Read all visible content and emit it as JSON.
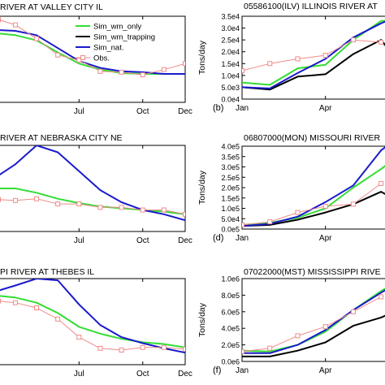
{
  "legend": {
    "items": [
      {
        "label": "Sim_wm_only",
        "color": "#33dd33",
        "marker": "none"
      },
      {
        "label": "Sim_wm_trapping",
        "color": "#000000",
        "marker": "none"
      },
      {
        "label": "Sim_nat.",
        "color": "#1a1acc",
        "marker": "none"
      },
      {
        "label": "Obs.",
        "color": "#f08a8a",
        "marker": "square"
      }
    ]
  },
  "colors": {
    "wm_only": "#33dd33",
    "wm_trapping": "#000000",
    "nat": "#1a1acc",
    "obs": "#f08a8a"
  },
  "chart_data": [
    {
      "type": "line",
      "panel": "left-top",
      "title": "RIVER AT VALLEY CITY IL",
      "ylabel": "",
      "panel_label": "",
      "xticks": [
        {
          "label": "Jul",
          "x": 7
        },
        {
          "label": "Oct",
          "x": 10
        },
        {
          "label": "Dec",
          "x": 12
        }
      ],
      "xlim": [
        3.2,
        12
      ],
      "ylim": [
        0,
        1
      ],
      "series": [
        {
          "name": "Sim_wm_only",
          "points": [
            [
              3.2,
              0.8
            ],
            [
              4,
              0.78
            ],
            [
              5,
              0.72
            ],
            [
              6,
              0.58
            ],
            [
              7,
              0.45
            ],
            [
              8,
              0.38
            ],
            [
              9,
              0.34
            ],
            [
              10,
              0.33
            ],
            [
              11,
              0.33
            ],
            [
              12,
              0.33
            ]
          ]
        },
        {
          "name": "Sim_nat.",
          "points": [
            [
              3.2,
              0.84
            ],
            [
              4,
              0.83
            ],
            [
              5,
              0.78
            ],
            [
              6,
              0.63
            ],
            [
              7,
              0.48
            ],
            [
              8,
              0.4
            ],
            [
              9,
              0.36
            ],
            [
              10,
              0.35
            ],
            [
              11,
              0.33
            ],
            [
              12,
              0.33
            ]
          ]
        },
        {
          "name": "Obs.",
          "markers": true,
          "points": [
            [
              3.2,
              0.96
            ],
            [
              4,
              0.9
            ],
            [
              5,
              0.74
            ],
            [
              6,
              0.55
            ],
            [
              7,
              0.49
            ],
            [
              8,
              0.36
            ],
            [
              9,
              0.35
            ],
            [
              10,
              0.32
            ],
            [
              11,
              0.38
            ],
            [
              12,
              0.45
            ]
          ]
        }
      ]
    },
    {
      "type": "line",
      "panel": "right-top",
      "title": "05586100(ILV) ILLINOIS RIVER AT",
      "ylabel": "Tons/day",
      "panel_label": "(b)",
      "xticks": [
        {
          "label": "Jan",
          "x": 1
        },
        {
          "label": "Apr",
          "x": 4
        }
      ],
      "yticks": [
        "0.0e4",
        "5.0e3",
        "1.0e4",
        "1.5e4",
        "2.0e4",
        "2.5e4",
        "3.0e4",
        "3.5e4"
      ],
      "xlim": [
        1,
        6.2
      ],
      "ylim": [
        0,
        35000
      ],
      "series": [
        {
          "name": "Sim_wm_only",
          "points": [
            [
              1,
              7000
            ],
            [
              2,
              6000
            ],
            [
              3,
              13000
            ],
            [
              4,
              14500
            ],
            [
              5,
              25000
            ],
            [
              6,
              33000
            ],
            [
              6.2,
              33000
            ]
          ]
        },
        {
          "name": "Sim_wm_trapping",
          "points": [
            [
              1,
              5000
            ],
            [
              2,
              4000
            ],
            [
              3,
              9500
            ],
            [
              4,
              10500
            ],
            [
              5,
              19000
            ],
            [
              6,
              25000
            ],
            [
              6.2,
              22000
            ]
          ]
        },
        {
          "name": "Sim_nat.",
          "points": [
            [
              1,
              5000
            ],
            [
              2,
              4500
            ],
            [
              3,
              11000
            ],
            [
              4,
              17000
            ],
            [
              5,
              26000
            ],
            [
              6,
              32000
            ],
            [
              6.2,
              33000
            ]
          ]
        },
        {
          "name": "Obs.",
          "markers": true,
          "points": [
            [
              1,
              12000
            ],
            [
              2,
              15000
            ],
            [
              3,
              17000
            ],
            [
              4,
              18500
            ],
            [
              5,
              25000
            ],
            [
              6,
              24000
            ]
          ]
        }
      ]
    },
    {
      "type": "line",
      "panel": "left-middle",
      "title": "RIVER AT NEBRASKA CITY NE",
      "ylabel": "",
      "panel_label": "",
      "xticks": [
        {
          "label": "Jul",
          "x": 7
        },
        {
          "label": "Oct",
          "x": 10
        },
        {
          "label": "Dec",
          "x": 12
        }
      ],
      "xlim": [
        3.2,
        12
      ],
      "ylim": [
        0,
        1
      ],
      "series": [
        {
          "name": "Sim_wm_only",
          "points": [
            [
              3.2,
              0.5
            ],
            [
              4,
              0.5
            ],
            [
              5,
              0.45
            ],
            [
              6,
              0.38
            ],
            [
              7,
              0.33
            ],
            [
              8,
              0.29
            ],
            [
              9,
              0.27
            ],
            [
              10,
              0.25
            ],
            [
              11,
              0.23
            ],
            [
              12,
              0.2
            ]
          ]
        },
        {
          "name": "Sim_nat.",
          "points": [
            [
              3.2,
              0.65
            ],
            [
              4,
              0.78
            ],
            [
              5,
              1.0
            ],
            [
              6,
              0.92
            ],
            [
              7,
              0.7
            ],
            [
              8,
              0.48
            ],
            [
              9,
              0.34
            ],
            [
              10,
              0.25
            ],
            [
              11,
              0.2
            ],
            [
              12,
              0.13
            ]
          ]
        },
        {
          "name": "Obs.",
          "markers": true,
          "points": [
            [
              3.2,
              0.37
            ],
            [
              4,
              0.36
            ],
            [
              5,
              0.38
            ],
            [
              6,
              0.32
            ],
            [
              7,
              0.32
            ],
            [
              8,
              0.28
            ],
            [
              9,
              0.28
            ],
            [
              10,
              0.25
            ],
            [
              11,
              0.25
            ],
            [
              12,
              0.2
            ]
          ]
        }
      ]
    },
    {
      "type": "line",
      "panel": "right-middle",
      "title": "06807000(MON) MISSOURI RIVER",
      "ylabel": "Tons/day",
      "panel_label": "(d)",
      "xticks": [
        {
          "label": "Jan",
          "x": 1
        },
        {
          "label": "Apr",
          "x": 4
        }
      ],
      "yticks": [
        "0.0e5",
        "5.0e4",
        "1.0e5",
        "1.5e5",
        "2.0e5",
        "2.5e5",
        "3.0e5",
        "3.5e5",
        "4.0e5"
      ],
      "xlim": [
        1,
        6.2
      ],
      "ylim": [
        0,
        400000
      ],
      "series": [
        {
          "name": "Sim_wm_only",
          "points": [
            [
              1,
              20000
            ],
            [
              2,
              30000
            ],
            [
              3,
              55000
            ],
            [
              4,
              100000
            ],
            [
              5,
              200000
            ],
            [
              6,
              290000
            ],
            [
              6.2,
              310000
            ]
          ]
        },
        {
          "name": "Sim_wm_trapping",
          "points": [
            [
              1,
              15000
            ],
            [
              2,
              20000
            ],
            [
              3,
              45000
            ],
            [
              4,
              80000
            ],
            [
              5,
              120000
            ],
            [
              6,
              180000
            ],
            [
              6.2,
              165000
            ]
          ]
        },
        {
          "name": "Sim_nat.",
          "points": [
            [
              1,
              15000
            ],
            [
              2,
              25000
            ],
            [
              3,
              60000
            ],
            [
              4,
              130000
            ],
            [
              5,
              210000
            ],
            [
              6,
              380000
            ],
            [
              6.2,
              400000
            ]
          ]
        },
        {
          "name": "Obs.",
          "markers": true,
          "points": [
            [
              1,
              20000
            ],
            [
              2,
              35000
            ],
            [
              3,
              80000
            ],
            [
              4,
              110000
            ],
            [
              5,
              120000
            ],
            [
              6,
              220000
            ]
          ]
        }
      ]
    },
    {
      "type": "line",
      "panel": "left-bottom",
      "title": "PI RIVER AT THEBES IL",
      "ylabel": "",
      "panel_label": "",
      "xticks": [
        {
          "label": "Jul",
          "x": 7
        },
        {
          "label": "Oct",
          "x": 10
        },
        {
          "label": "Dec",
          "x": 12
        }
      ],
      "xlim": [
        3.2,
        12
      ],
      "ylim": [
        0,
        1
      ],
      "series": [
        {
          "name": "Sim_wm_only",
          "points": [
            [
              3.2,
              0.8
            ],
            [
              4,
              0.78
            ],
            [
              5,
              0.72
            ],
            [
              6,
              0.6
            ],
            [
              7,
              0.44
            ],
            [
              8,
              0.36
            ],
            [
              9,
              0.3
            ],
            [
              10,
              0.26
            ],
            [
              11,
              0.24
            ],
            [
              12,
              0.2
            ]
          ]
        },
        {
          "name": "Sim_nat.",
          "points": [
            [
              3.2,
              0.86
            ],
            [
              4,
              0.92
            ],
            [
              5,
              1.0
            ],
            [
              6,
              0.98
            ],
            [
              7,
              0.7
            ],
            [
              8,
              0.46
            ],
            [
              9,
              0.32
            ],
            [
              10,
              0.25
            ],
            [
              11,
              0.19
            ],
            [
              12,
              0.14
            ]
          ]
        },
        {
          "name": "Obs.",
          "markers": true,
          "points": [
            [
              3.2,
              0.74
            ],
            [
              4,
              0.72
            ],
            [
              5,
              0.66
            ],
            [
              6,
              0.53
            ],
            [
              7,
              0.32
            ],
            [
              8,
              0.19
            ],
            [
              9,
              0.17
            ],
            [
              10,
              0.2
            ],
            [
              11,
              0.2
            ],
            [
              12,
              0.18
            ]
          ]
        }
      ]
    },
    {
      "type": "line",
      "panel": "right-bottom",
      "title": "07022000(MST) MISSISSIPPI RIVE",
      "ylabel": "Tons/day",
      "panel_label": "(f)",
      "xticks": [
        {
          "label": "Jan",
          "x": 1
        },
        {
          "label": "Apr",
          "x": 4
        }
      ],
      "yticks": [
        "0.0e6",
        "2.0e5",
        "4.0e5",
        "6.0e5",
        "8.0e5",
        "1.0e6"
      ],
      "xlim": [
        1,
        6.2
      ],
      "ylim": [
        0,
        1000000
      ],
      "series": [
        {
          "name": "Sim_wm_only",
          "points": [
            [
              1,
              130000
            ],
            [
              2,
              120000
            ],
            [
              3,
              200000
            ],
            [
              4,
              360000
            ],
            [
              5,
              620000
            ],
            [
              6,
              850000
            ],
            [
              6.2,
              890000
            ]
          ]
        },
        {
          "name": "Sim_wm_trapping",
          "points": [
            [
              1,
              60000
            ],
            [
              2,
              60000
            ],
            [
              3,
              130000
            ],
            [
              4,
              230000
            ],
            [
              5,
              430000
            ],
            [
              6,
              530000
            ],
            [
              6.2,
              560000
            ]
          ]
        },
        {
          "name": "Sim_nat.",
          "points": [
            [
              1,
              100000
            ],
            [
              2,
              100000
            ],
            [
              3,
              200000
            ],
            [
              4,
              380000
            ],
            [
              5,
              620000
            ],
            [
              6,
              830000
            ],
            [
              6.2,
              870000
            ]
          ]
        },
        {
          "name": "Obs.",
          "markers": true,
          "points": [
            [
              1,
              120000
            ],
            [
              2,
              160000
            ],
            [
              3,
              310000
            ],
            [
              4,
              420000
            ],
            [
              5,
              600000
            ],
            [
              6,
              780000
            ]
          ]
        }
      ]
    }
  ]
}
